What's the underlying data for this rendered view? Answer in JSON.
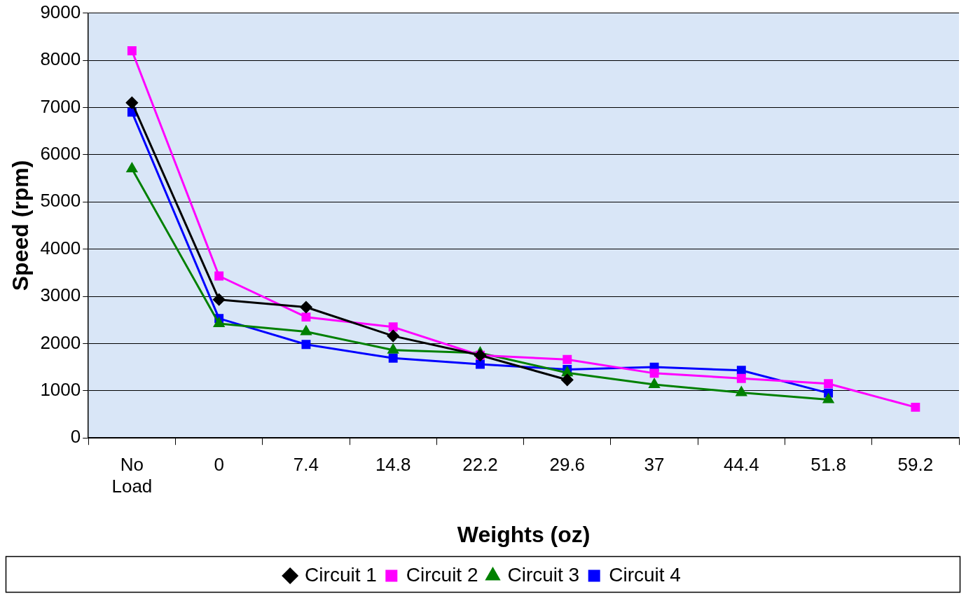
{
  "chart_data": {
    "type": "line",
    "xlabel": "Weights (oz)",
    "ylabel": "Speed (rpm)",
    "categories": [
      "No Load",
      "0",
      "7.4",
      "14.8",
      "22.2",
      "29.6",
      "37",
      "44.4",
      "51.8",
      "59.2"
    ],
    "ylim": [
      0,
      9000
    ],
    "yticks": [
      0,
      1000,
      2000,
      3000,
      4000,
      5000,
      6000,
      7000,
      8000,
      9000
    ],
    "grid": "y",
    "legend": "bottom",
    "line_style": "solid",
    "series": [
      {
        "name": "Circuit 1",
        "color": "#000000",
        "marker": "diamond",
        "values": [
          7100,
          2930,
          2770,
          2160,
          1750,
          1230,
          null,
          null,
          null,
          null
        ]
      },
      {
        "name": "Circuit 2",
        "color": "#ff00ff",
        "marker": "square",
        "values": [
          8200,
          3430,
          2560,
          2350,
          1750,
          1660,
          1370,
          1260,
          1150,
          650
        ]
      },
      {
        "name": "Circuit 3",
        "color": "#008000",
        "marker": "triangle",
        "values": [
          5700,
          2420,
          2250,
          1860,
          1800,
          1380,
          1130,
          960,
          810,
          null
        ]
      },
      {
        "name": "Circuit 4",
        "color": "#0000ff",
        "marker": "square",
        "values": [
          6900,
          2530,
          1980,
          1690,
          1560,
          1450,
          1500,
          1430,
          950,
          null
        ]
      }
    ]
  }
}
